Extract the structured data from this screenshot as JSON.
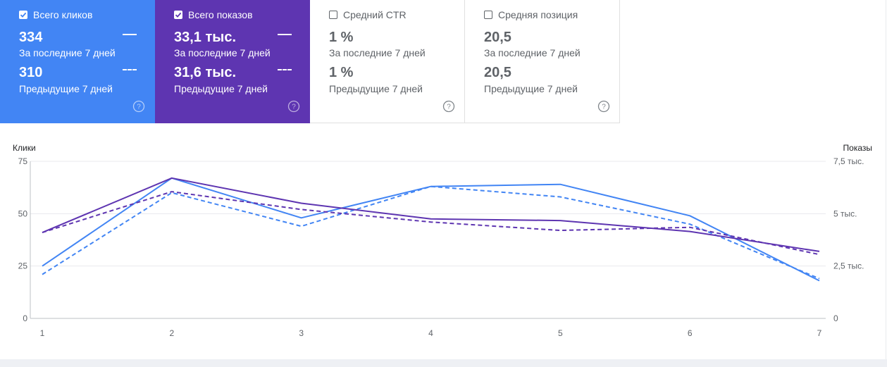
{
  "colors": {
    "clicks": "#4285f4",
    "impressions": "#5e35b1",
    "grid": "#e8eaed",
    "axis_text": "#5f6368"
  },
  "cards": [
    {
      "id": "clicks",
      "label": "Всего кликов",
      "checked": true,
      "bg": "#4285f4",
      "current_value": "334",
      "current_period": "За последние 7 дней",
      "previous_value": "310",
      "previous_period": "Предыдущие 7 дней"
    },
    {
      "id": "impressions",
      "label": "Всего показов",
      "checked": true,
      "bg": "#5e35b1",
      "current_value": "33,1 тыс.",
      "current_period": "За последние 7 дней",
      "previous_value": "31,6 тыс.",
      "previous_period": "Предыдущие 7 дней"
    },
    {
      "id": "ctr",
      "label": "Средний CTR",
      "checked": false,
      "bg": "#ffffff",
      "current_value": "1 %",
      "current_period": "За последние 7 дней",
      "previous_value": "1 %",
      "previous_period": "Предыдущие 7 дней"
    },
    {
      "id": "position",
      "label": "Средняя позиция",
      "checked": false,
      "bg": "#ffffff",
      "current_value": "20,5",
      "current_period": "За последние 7 дней",
      "previous_value": "20,5",
      "previous_period": "Предыдущие 7 дней"
    }
  ],
  "chart_data": {
    "type": "line",
    "x": [
      1,
      2,
      3,
      4,
      5,
      6,
      7
    ],
    "left_axis_label": "Клики",
    "right_axis_label": "Показы",
    "left_ylim": [
      0,
      75
    ],
    "right_ylim": [
      0,
      7500
    ],
    "left_ticks": [
      "0",
      "25",
      "50",
      "75"
    ],
    "right_ticks": [
      "0",
      "2,5 тыс.",
      "5 тыс.",
      "7,5 тыс."
    ],
    "series": [
      {
        "name": "Всего кликов — За последние 7 дней",
        "axis": "left",
        "style": "solid",
        "color": "#4285f4",
        "values": [
          25,
          67,
          48,
          63,
          64,
          49,
          18
        ]
      },
      {
        "name": "Всего кликов — Предыдущие 7 дней",
        "axis": "left",
        "style": "dashed",
        "color": "#4285f4",
        "values": [
          21,
          60,
          44,
          63,
          58,
          45,
          19
        ]
      },
      {
        "name": "Всего показов — За последние 7 дней",
        "axis": "right",
        "style": "solid",
        "color": "#5e35b1",
        "values": [
          4100,
          6700,
          5500,
          4750,
          4670,
          4150,
          3200
        ]
      },
      {
        "name": "Всего показов — Предыдущие 7 дней",
        "axis": "right",
        "style": "dashed",
        "color": "#5e35b1",
        "values": [
          4100,
          6050,
          5200,
          4600,
          4200,
          4350,
          3050
        ]
      }
    ]
  }
}
